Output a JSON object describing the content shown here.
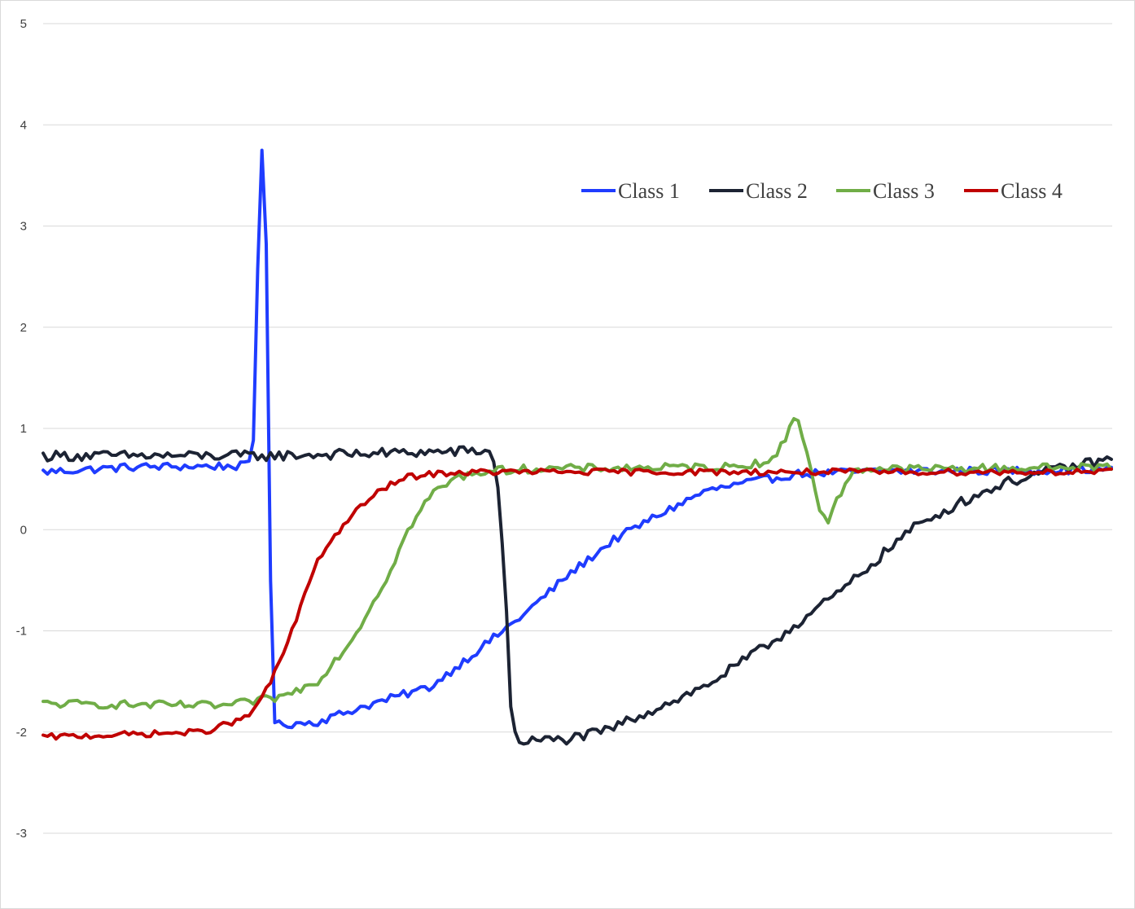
{
  "chart_data": {
    "type": "line",
    "title": "",
    "xlabel": "",
    "ylabel": "",
    "ylim": [
      -3,
      5
    ],
    "y_ticks": [
      "5",
      "4",
      "3",
      "2",
      "1",
      "0",
      "-1",
      "-2",
      "-3"
    ],
    "x_ticks_shown": false,
    "grid": "horizontal",
    "legend_position": "top-right",
    "num_points": 250,
    "series": [
      {
        "name": "Class 1",
        "color": "#1f3cff",
        "keypoints": [
          [
            0,
            0.57
          ],
          [
            40,
            0.62
          ],
          [
            90,
            0.63
          ],
          [
            92,
            0.8
          ],
          [
            95,
            3.5
          ],
          [
            96,
            3.82
          ],
          [
            97,
            3.82
          ],
          [
            98,
            2.5
          ],
          [
            99,
            0.5
          ],
          [
            100,
            -1.2
          ],
          [
            101,
            -1.85
          ],
          [
            102,
            -1.93
          ],
          [
            120,
            -1.9
          ],
          [
            140,
            -1.75
          ],
          [
            170,
            -1.55
          ],
          [
            190,
            -1.2
          ],
          [
            210,
            -0.85
          ],
          [
            230,
            -0.45
          ],
          [
            250,
            -0.1
          ],
          [
            270,
            0.15
          ],
          [
            290,
            0.38
          ],
          [
            310,
            0.47
          ],
          [
            330,
            0.55
          ],
          [
            370,
            0.58
          ],
          [
            420,
            0.58
          ],
          [
            468,
            0.6
          ]
        ],
        "noise": 0.04
      },
      {
        "name": "Class 2",
        "color": "#1c2333",
        "keypoints": [
          [
            0,
            0.73
          ],
          [
            100,
            0.73
          ],
          [
            196,
            0.78
          ],
          [
            197,
            0.7
          ],
          [
            200,
            0.3
          ],
          [
            203,
            -0.8
          ],
          [
            205,
            -1.8
          ],
          [
            207,
            -2.07
          ],
          [
            210,
            -2.09
          ],
          [
            230,
            -2.07
          ],
          [
            245,
            -2.0
          ],
          [
            260,
            -1.85
          ],
          [
            290,
            -1.55
          ],
          [
            320,
            -1.1
          ],
          [
            350,
            -0.6
          ],
          [
            370,
            -0.2
          ],
          [
            380,
            0.0
          ],
          [
            400,
            0.25
          ],
          [
            420,
            0.45
          ],
          [
            440,
            0.58
          ],
          [
            468,
            0.7
          ]
        ],
        "noise": 0.05
      },
      {
        "name": "Class 3",
        "color": "#70ad47",
        "keypoints": [
          [
            0,
            -1.72
          ],
          [
            80,
            -1.74
          ],
          [
            105,
            -1.65
          ],
          [
            120,
            -1.5
          ],
          [
            135,
            -1.1
          ],
          [
            150,
            -0.5
          ],
          [
            160,
            0.0
          ],
          [
            170,
            0.35
          ],
          [
            180,
            0.5
          ],
          [
            190,
            0.57
          ],
          [
            210,
            0.6
          ],
          [
            300,
            0.62
          ],
          [
            320,
            0.68
          ],
          [
            325,
            0.9
          ],
          [
            328,
            1.1
          ],
          [
            331,
            1.1
          ],
          [
            336,
            0.6
          ],
          [
            341,
            0.15
          ],
          [
            344,
            0.07
          ],
          [
            348,
            0.3
          ],
          [
            355,
            0.6
          ],
          [
            380,
            0.6
          ],
          [
            468,
            0.62
          ]
        ],
        "noise": 0.04
      },
      {
        "name": "Class 4",
        "color": "#c00000",
        "keypoints": [
          [
            0,
            -2.05
          ],
          [
            70,
            -2.0
          ],
          [
            90,
            -1.85
          ],
          [
            100,
            -1.5
          ],
          [
            110,
            -0.95
          ],
          [
            120,
            -0.3
          ],
          [
            130,
            0.0
          ],
          [
            140,
            0.25
          ],
          [
            150,
            0.42
          ],
          [
            160,
            0.52
          ],
          [
            175,
            0.56
          ],
          [
            200,
            0.57
          ],
          [
            468,
            0.57
          ]
        ],
        "noise": 0.03
      }
    ]
  }
}
